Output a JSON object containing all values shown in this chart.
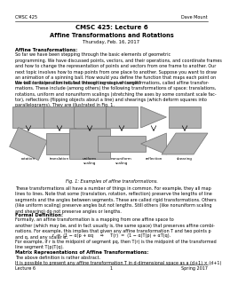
{
  "page_title_line1": "CMSC 425: Lecture 6",
  "page_title_line2": "Affine Transformations and Rotations",
  "page_title_line3": "Thursday, Feb. 16, 2017",
  "header_left": "CMSC 425",
  "header_right": "Dave Mount",
  "footer_left": "Lecture 6",
  "footer_center": "1",
  "footer_right": "Spring 2017",
  "section1_title": "Affine Transformations:",
  "section1_body1": "So far we have been stepping through the basic elements of geometric\nprogramming. We have discussed points, vectors, and their operations, and coordinate frames\nand how to change the representation of points and vectors from one frame to another. Our\nnext topic involves how to map points from one place to another. Suppose you want to draw\nan animation of a spinning ball. How would you define the function that maps each point on\nthe ball to its position rotated through some given angle?",
  "section1_body2": "We will consider a limited, but interesting class of transformations, called affine transfor-\nmations. These include (among others) the following transformations of space: translations,\nrotations, uniform and nonuniform scalings (stretching the axes by some constant scale fac-\ntor), reflections (flipping objects about a line) and shearings (which deform squares into\nparallelograms). They are illustrated in Fig. 1.",
  "fig_caption": "Fig. 1: Examples of affine transformations.",
  "section2_body": "These transformations all have a number of things in common. For example, they all map\nlines to lines. Note that some (translation, rotation, reflection) preserve the lengths of line\nsegments and the angles between segments. These are called rigid transformations. Others\n(like uniform scaling) preserve angles but not lengths. Still others (like nonuniform scaling\nand shearing) do not preserve angles or lengths.",
  "section3_title": "Formal Definition:",
  "section3_body": "Formally, an affine transformation is a mapping from one affine space to\nanother (which may be, and in fact usually is, the same space) that preserves affine combi-\nnations. For example, this implies that given any affine transformation T and two points p\nand q, and any scalar α,",
  "formula1": "r  =  (1 − α)p + αq     ⇒     T(r)  =  (1 − α)T(p) + αT(q).",
  "section3_body2": "For example, if r is the midpoint of segment pq, then T(r) is the midpoint of the transformed\nline segment T(p)T(q).",
  "section4_title": "Matrix Representations of Affine Transformations:",
  "section4_body": "The above definition is rather abstract.\nIt is possible to present any affine transformation T in d-dimensional space as a (d+1) × (d+1)",
  "background_color": "#ffffff",
  "text_color": "#000000",
  "shape_fill": "#b0b0b0",
  "shape_edge": "#707070",
  "fig_labels": [
    "rotation",
    "translation",
    "uniform\nscaling",
    "nonuniform\nscaling",
    "reflection",
    "shearing"
  ]
}
